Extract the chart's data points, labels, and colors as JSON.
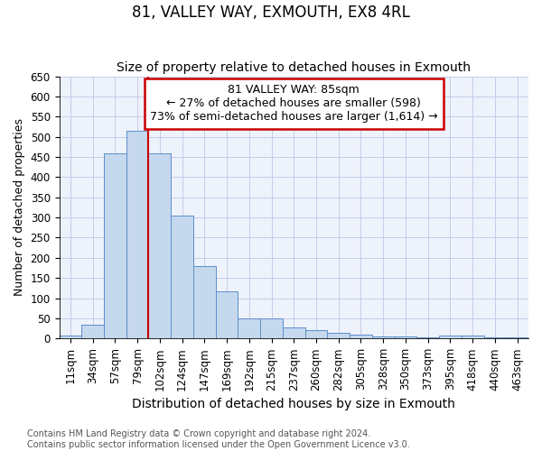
{
  "title": "81, VALLEY WAY, EXMOUTH, EX8 4RL",
  "subtitle": "Size of property relative to detached houses in Exmouth",
  "xlabel": "Distribution of detached houses by size in Exmouth",
  "ylabel": "Number of detached properties",
  "categories": [
    "11sqm",
    "34sqm",
    "57sqm",
    "79sqm",
    "102sqm",
    "124sqm",
    "147sqm",
    "169sqm",
    "192sqm",
    "215sqm",
    "237sqm",
    "260sqm",
    "282sqm",
    "305sqm",
    "328sqm",
    "350sqm",
    "373sqm",
    "395sqm",
    "418sqm",
    "440sqm",
    "463sqm"
  ],
  "values": [
    7,
    35,
    460,
    515,
    458,
    305,
    180,
    118,
    50,
    50,
    27,
    20,
    14,
    9,
    5,
    5,
    2,
    7,
    7,
    4,
    3
  ],
  "bar_color": "#c5d8ee",
  "bar_edge_color": "#5b8fc9",
  "bg_color": "#eef2fb",
  "grid_color": "#c5cce8",
  "annotation_text_line1": "81 VALLEY WAY: 85sqm",
  "annotation_text_line2": "← 27% of detached houses are smaller (598)",
  "annotation_text_line3": "73% of semi-detached houses are larger (1,614) →",
  "annotation_box_facecolor": "#ffffff",
  "annotation_border_color": "#cc0000",
  "vline_color": "#cc0000",
  "vline_x": 3.5,
  "footer_line1": "Contains HM Land Registry data © Crown copyright and database right 2024.",
  "footer_line2": "Contains public sector information licensed under the Open Government Licence v3.0.",
  "ylim": [
    0,
    650
  ],
  "yticks": [
    0,
    50,
    100,
    150,
    200,
    250,
    300,
    350,
    400,
    450,
    500,
    550,
    600,
    650
  ],
  "title_fontsize": 12,
  "subtitle_fontsize": 10,
  "xlabel_fontsize": 10,
  "ylabel_fontsize": 9,
  "tick_fontsize": 8.5,
  "annot_fontsize": 9,
  "footer_fontsize": 7
}
